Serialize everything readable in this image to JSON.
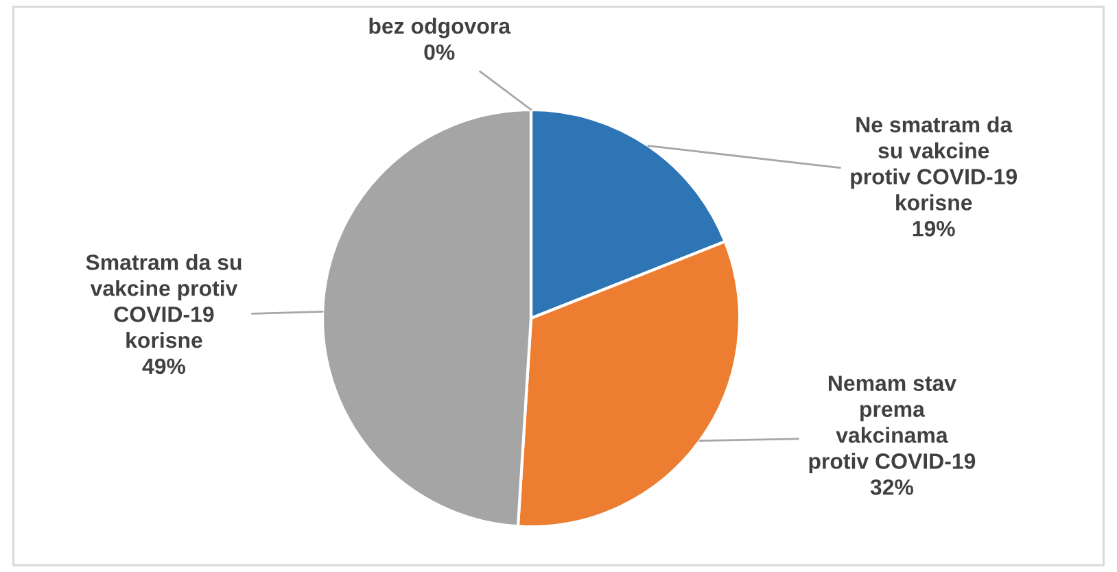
{
  "chart_data": {
    "type": "pie",
    "categories": [
      "Ne smatram da\nsu vakcine\nprotiv COVID-19\nkorisne",
      "Nemam stav\nprema\nvakcinama\nprotiv COVID-19",
      "Smatram da su\nvakcine protiv\nCOVID-19\nkorisne",
      "bez odgovora"
    ],
    "values": [
      19,
      32,
      49,
      0
    ],
    "colors": [
      "#2e75b6",
      "#ed7d31",
      "#a5a5a5",
      "#ffc000"
    ],
    "value_labels": [
      "19%",
      "32%",
      "49%",
      "0%"
    ],
    "legend": false
  }
}
